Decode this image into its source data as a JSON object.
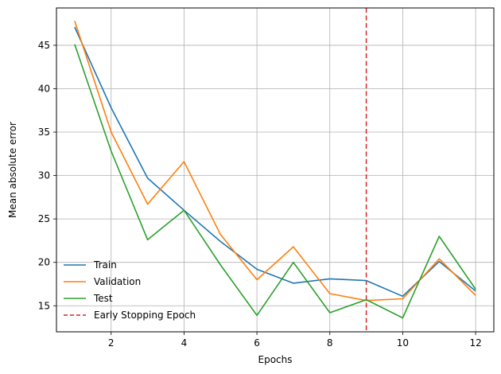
{
  "chart_data": {
    "type": "line",
    "title": "",
    "xlabel": "Epochs",
    "ylabel": "Mean absolute error",
    "xlim": [
      0.5,
      12.5
    ],
    "ylim": [
      12,
      49.3
    ],
    "xticks": [
      2,
      4,
      6,
      8,
      10,
      12
    ],
    "yticks": [
      15,
      20,
      25,
      30,
      35,
      40,
      45
    ],
    "grid": true,
    "legend_position": "lower-left",
    "x": [
      1,
      2,
      3,
      4,
      5,
      6,
      7,
      8,
      9,
      10,
      11,
      12
    ],
    "series": [
      {
        "name": "Train",
        "color": "#1f77b4",
        "values": [
          47.1,
          37.8,
          29.7,
          26.0,
          22.4,
          19.2,
          17.6,
          18.1,
          17.9,
          16.1,
          20.1,
          16.7
        ]
      },
      {
        "name": "Validation",
        "color": "#ff7f0e",
        "values": [
          47.8,
          35.0,
          26.7,
          31.6,
          23.2,
          18.0,
          21.8,
          16.4,
          15.6,
          15.8,
          20.4,
          16.2
        ]
      },
      {
        "name": "Test",
        "color": "#2ca02c",
        "values": [
          45.1,
          32.8,
          22.6,
          26.0,
          19.7,
          13.9,
          20.0,
          14.2,
          15.7,
          13.6,
          23.0,
          16.9
        ]
      }
    ],
    "vlines": [
      {
        "name": "Early Stopping Epoch",
        "x": 9,
        "color": "#d62728",
        "style": "dashed"
      }
    ]
  }
}
